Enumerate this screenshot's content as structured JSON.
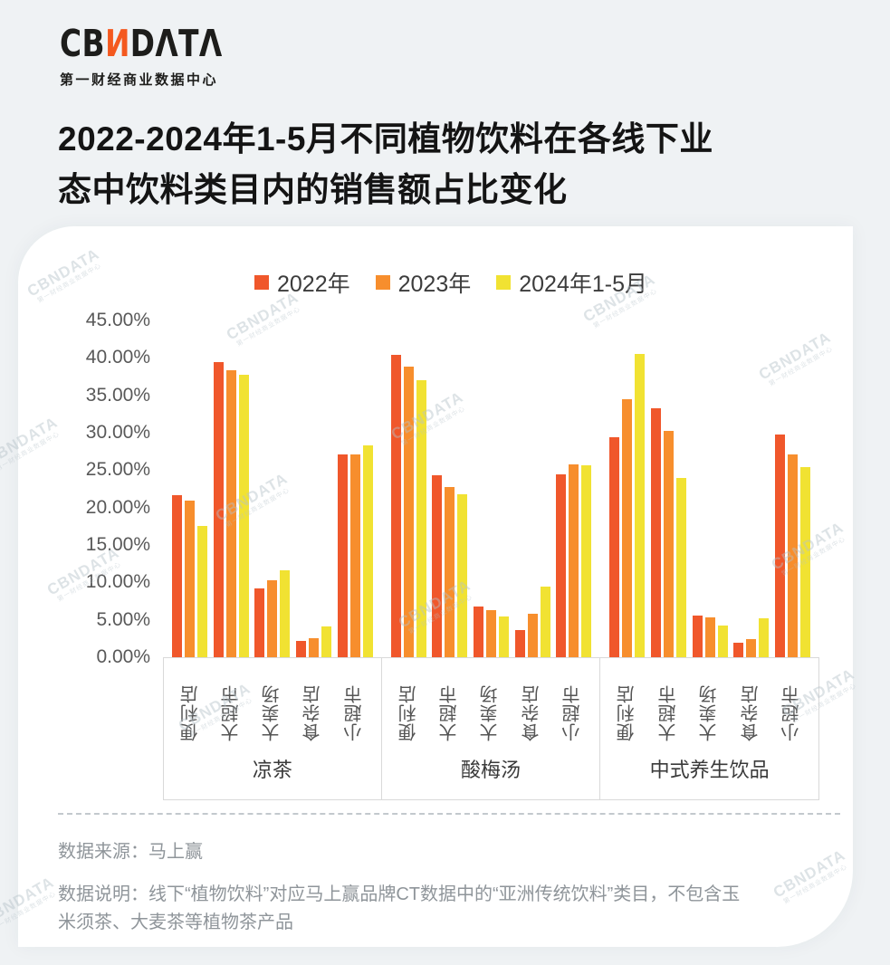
{
  "logo": {
    "prefix": "CB",
    "n": "N",
    "suffix": "DΛTΛ",
    "subtitle": "第一财经商业数据中心"
  },
  "title": {
    "line1": "2022-2024年1-5月不同植物饮料在各线下业",
    "line2": "态中饮料类目内的销售额占比变化"
  },
  "watermark": {
    "line1": "CBNDATA",
    "line2": "第一财经商业数据中心"
  },
  "chart_data": {
    "type": "bar",
    "title": "2022-2024年1-5月不同植物饮料在各线下业态中饮料类目内的销售额占比变化",
    "unit": "%",
    "legend_position": "top",
    "grid": false,
    "ylim": [
      0,
      45
    ],
    "ytick_step": 5,
    "ytick_labels": [
      "45.00%",
      "40.00%",
      "35.00%",
      "30.00%",
      "25.00%",
      "20.00%",
      "15.00%",
      "10.00%",
      "5.00%",
      "0.00%"
    ],
    "series": [
      {
        "name": "2022年",
        "color": "#F0572B"
      },
      {
        "name": "2023年",
        "color": "#F78E2D"
      },
      {
        "name": "2024年1-5月",
        "color": "#F1E232"
      }
    ],
    "groups": [
      {
        "label": "凉茶",
        "bars": [
          {
            "channel": "便利店",
            "values": [
              21.7,
              20.9,
              17.5
            ]
          },
          {
            "channel": "大超市",
            "values": [
              39.4,
              38.4,
              37.7
            ]
          },
          {
            "channel": "大卖场",
            "values": [
              9.2,
              10.3,
              11.6
            ]
          },
          {
            "channel": "食杂店",
            "values": [
              2.2,
              2.6,
              4.1
            ]
          },
          {
            "channel": "小超市",
            "values": [
              27.1,
              27.1,
              28.3
            ]
          }
        ]
      },
      {
        "label": "酸梅汤",
        "bars": [
          {
            "channel": "便利店",
            "values": [
              40.4,
              38.8,
              37.0
            ]
          },
          {
            "channel": "大超市",
            "values": [
              24.3,
              22.7,
              21.8
            ]
          },
          {
            "channel": "大卖场",
            "values": [
              6.8,
              6.3,
              5.4
            ]
          },
          {
            "channel": "食杂店",
            "values": [
              3.6,
              5.8,
              9.5
            ]
          },
          {
            "channel": "小超市",
            "values": [
              24.4,
              25.8,
              25.6
            ]
          }
        ]
      },
      {
        "label": "中式养生饮品",
        "bars": [
          {
            "channel": "便利店",
            "values": [
              29.4,
              34.5,
              40.5
            ]
          },
          {
            "channel": "大超市",
            "values": [
              33.3,
              30.2,
              24.0
            ]
          },
          {
            "channel": "大卖场",
            "values": [
              5.6,
              5.3,
              4.3
            ]
          },
          {
            "channel": "食杂店",
            "values": [
              1.9,
              2.4,
              5.2
            ]
          },
          {
            "channel": "小超市",
            "values": [
              29.8,
              27.1,
              25.4
            ]
          }
        ]
      }
    ]
  },
  "footer": {
    "source": "数据来源：马上赢",
    "note": "数据说明：线下“植物饮料”对应马上赢品牌CT数据中的“亚洲传统饮料”类目，不包含玉米须茶、大麦茶等植物茶产品"
  }
}
